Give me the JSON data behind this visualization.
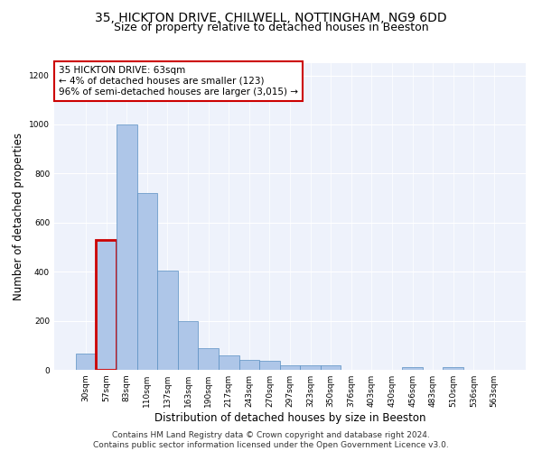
{
  "title1": "35, HICKTON DRIVE, CHILWELL, NOTTINGHAM, NG9 6DD",
  "title2": "Size of property relative to detached houses in Beeston",
  "xlabel": "Distribution of detached houses by size in Beeston",
  "ylabel": "Number of detached properties",
  "categories": [
    "30sqm",
    "57sqm",
    "83sqm",
    "110sqm",
    "137sqm",
    "163sqm",
    "190sqm",
    "217sqm",
    "243sqm",
    "270sqm",
    "297sqm",
    "323sqm",
    "350sqm",
    "376sqm",
    "403sqm",
    "430sqm",
    "456sqm",
    "483sqm",
    "510sqm",
    "536sqm",
    "563sqm"
  ],
  "values": [
    65,
    530,
    1000,
    720,
    405,
    200,
    90,
    60,
    40,
    35,
    20,
    20,
    20,
    0,
    0,
    0,
    12,
    0,
    10,
    0,
    0
  ],
  "bar_color": "#aec6e8",
  "bar_edge_color": "#5a8fc2",
  "highlight_index": 1,
  "highlight_edge_color": "#cc0000",
  "annotation_box_text": "35 HICKTON DRIVE: 63sqm\n← 4% of detached houses are smaller (123)\n96% of semi-detached houses are larger (3,015) →",
  "box_edge_color": "#cc0000",
  "ylim": [
    0,
    1250
  ],
  "yticks": [
    0,
    200,
    400,
    600,
    800,
    1000,
    1200
  ],
  "bg_color": "#eef2fb",
  "footer_text": "Contains HM Land Registry data © Crown copyright and database right 2024.\nContains public sector information licensed under the Open Government Licence v3.0.",
  "title1_fontsize": 10,
  "title2_fontsize": 9,
  "xlabel_fontsize": 8.5,
  "ylabel_fontsize": 8.5,
  "annotation_fontsize": 7.5,
  "footer_fontsize": 6.5,
  "tick_fontsize": 6.5
}
